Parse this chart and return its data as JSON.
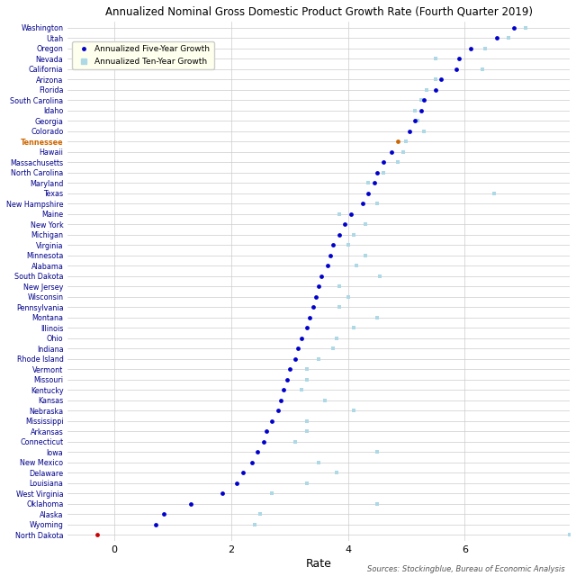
{
  "title": "Annualized Nominal Gross Domestic Product Growth Rate (Fourth Quarter 2019)",
  "xlabel": "Rate",
  "source": "Sources: Stockingblue, Bureau of Economic Analysis",
  "states": [
    "Washington",
    "Utah",
    "Oregon",
    "Nevada",
    "California",
    "Arizona",
    "Florida",
    "South Carolina",
    "Idaho",
    "Georgia",
    "Colorado",
    "Tennessee",
    "Hawaii",
    "Massachusetts",
    "North Carolina",
    "Maryland",
    "Texas",
    "New Hampshire",
    "Maine",
    "New York",
    "Michigan",
    "Virginia",
    "Minnesota",
    "Alabama",
    "South Dakota",
    "New Jersey",
    "Wisconsin",
    "Pennsylvania",
    "Montana",
    "Illinois",
    "Ohio",
    "Indiana",
    "Rhode Island",
    "Vermont",
    "Missouri",
    "Kentucky",
    "Kansas",
    "Nebraska",
    "Mississippi",
    "Arkansas",
    "Connecticut",
    "Iowa",
    "New Mexico",
    "Delaware",
    "Louisiana",
    "West Virginia",
    "Oklahoma",
    "Alaska",
    "Wyoming",
    "North Dakota"
  ],
  "five_year": [
    6.85,
    6.55,
    6.1,
    5.9,
    5.85,
    5.6,
    5.5,
    5.3,
    5.25,
    5.15,
    5.05,
    4.85,
    4.75,
    4.6,
    4.5,
    4.45,
    4.35,
    4.25,
    4.05,
    3.95,
    3.85,
    3.75,
    3.7,
    3.65,
    3.55,
    3.5,
    3.45,
    3.4,
    3.35,
    3.3,
    3.2,
    3.15,
    3.1,
    3.0,
    2.95,
    2.9,
    2.85,
    2.8,
    2.7,
    2.6,
    2.55,
    2.45,
    2.35,
    2.2,
    2.1,
    1.85,
    1.3,
    0.85,
    0.7,
    -0.3
  ],
  "ten_year": [
    7.05,
    6.75,
    6.35,
    5.5,
    6.3,
    5.5,
    5.35,
    5.25,
    5.15,
    5.2,
    5.3,
    5.0,
    4.95,
    4.85,
    4.6,
    4.35,
    6.5,
    4.5,
    3.85,
    4.3,
    4.1,
    4.0,
    4.3,
    4.15,
    4.55,
    3.85,
    4.0,
    3.85,
    4.5,
    4.1,
    3.8,
    3.75,
    3.5,
    3.3,
    3.3,
    3.2,
    3.6,
    4.1,
    3.3,
    3.3,
    3.1,
    4.5,
    3.5,
    3.8,
    3.3,
    2.7,
    4.5,
    2.5,
    2.4,
    7.8
  ],
  "five_year_color": "#0000cd",
  "ten_year_color": "#add8e6",
  "tennessee_color": "#cc6600",
  "north_dakota_five_color": "#cc0000",
  "background_color": "#ffffff",
  "grid_color": "#cccccc",
  "label_color": "#00008b",
  "label_tennessee_color": "#cc6600",
  "source_color": "#555555",
  "xlim": [
    -0.8,
    7.8
  ],
  "xticks": [
    0,
    2,
    4,
    6
  ],
  "xtick_labels": [
    "0",
    "2",
    "4",
    "6"
  ]
}
